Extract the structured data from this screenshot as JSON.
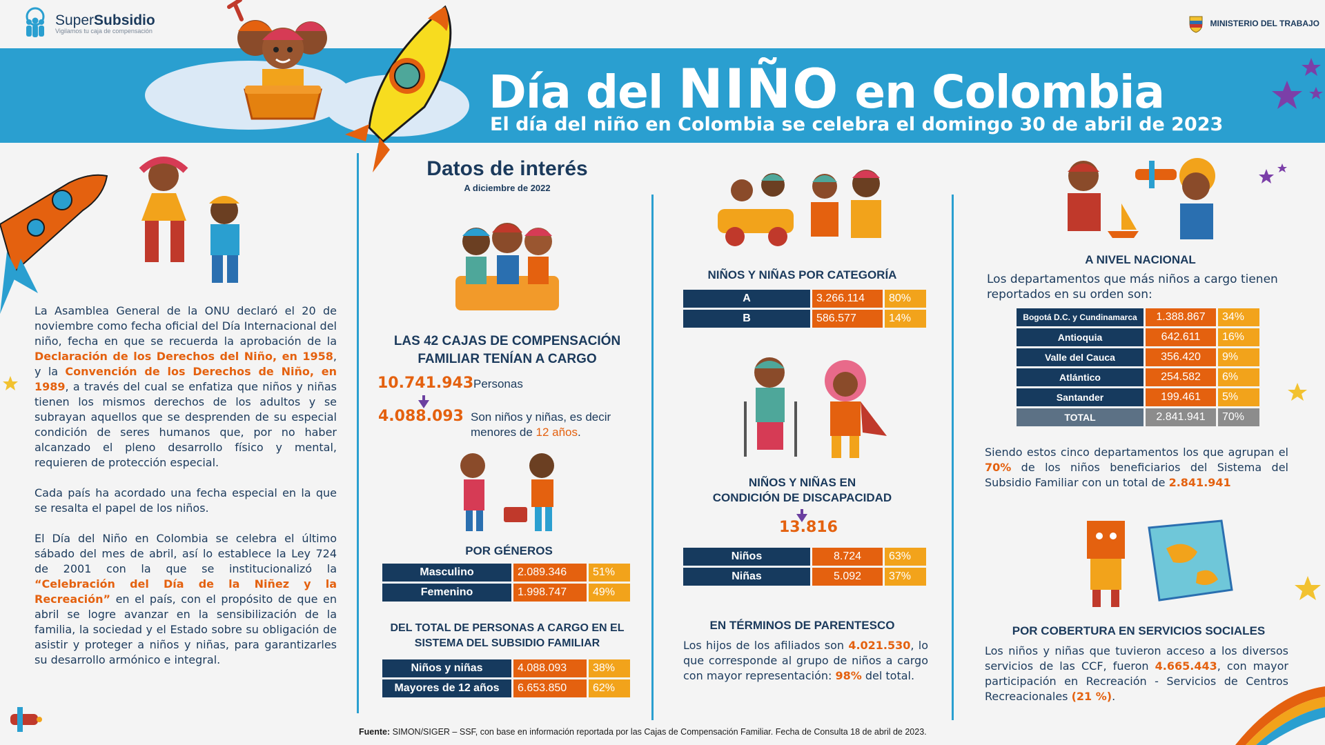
{
  "header": {
    "logo_name_a": "Super",
    "logo_name_b": "Subsidio",
    "logo_tagline": "Vigilamos tu caja de compensación",
    "ministry": "MINISTERIO DEL TRABAJO"
  },
  "banner": {
    "title_a": "Día del",
    "title_b": "NIÑO",
    "title_c": "en Colombia",
    "subtitle": "El día del niño en Colombia se celebra el domingo 30 de abril de 2023"
  },
  "col1": {
    "p1_a": "La Asamblea General de la ONU declaró el 20 de noviembre como fecha oficial del Día Internacional del niño, fecha en que se recuerda la aprobación de la ",
    "p1_hl1": "Declaración de los Derechos del Niño, en 1958",
    "p1_b": ", y la ",
    "p1_hl2": "Convención de los Derechos de Niño, en 1989",
    "p1_c": ", a través del cual se enfatiza que niños y niñas tienen los mismos derechos de los adultos y se subrayan aquellos que se desprenden de su especial condición de seres humanos que, por no haber alcanzado el pleno desarrollo físico y mental, requieren de protección especial.",
    "p2": "Cada país ha acordado una fecha especial en la que se resalta el papel de los niños.",
    "p3_a": "El Día del Niño en Colombia se celebra el último sábado del mes de abril, así lo establece la Ley 724 de 2001 con la que se institucionalizó la ",
    "p3_hl": "“Celebración del Día de la Niñez y la Recreación”",
    "p3_b": " en el país, con el propósito de que en abril se logre avanzar en la sensibilización de la familia, la sociedad y el Estado sobre su obligación de asistir y proteger a niños y niñas, para garantizarles su desarrollo armónico e integral."
  },
  "col2": {
    "title": "Datos de interés",
    "date": "A diciembre de 2022",
    "cajas_title_1": "LAS 42 CAJAS DE COMPENSACIÓN",
    "cajas_title_2": "FAMILIAR TENÍAN A CARGO",
    "personas_value": "10.741.943",
    "personas_label": "Personas",
    "ninos_value": "4.088.093",
    "ninos_label_1": "Son niños y niñas, es decir",
    "ninos_label_2": "menores de ",
    "ninos_label_hl": "12 años",
    "ninos_label_end": ".",
    "generos_title": "POR GÉNEROS",
    "generos": [
      {
        "label": "Masculino",
        "value": "2.089.346",
        "pct": "51%"
      },
      {
        "label": "Femenino",
        "value": "1.998.747",
        "pct": "49%"
      }
    ],
    "total_title_1": "DEL TOTAL DE PERSONAS A CARGO EN EL",
    "total_title_2": "SISTEMA DEL SUBSIDIO FAMILIAR",
    "total": [
      {
        "label": "Niños y niñas",
        "value": "4.088.093",
        "pct": "38%"
      },
      {
        "label": "Mayores de 12 años",
        "value": "6.653.850",
        "pct": "62%"
      }
    ]
  },
  "col3": {
    "categoria_title": "NIÑOS Y NIÑAS POR CATEGORÍA",
    "categoria": [
      {
        "label": "A",
        "value": "3.266.114",
        "pct": "80%"
      },
      {
        "label": "B",
        "value": "586.577",
        "pct": "14%"
      }
    ],
    "disc_title_1": "NIÑOS Y NIÑAS EN",
    "disc_title_2": "CONDICIÓN DE DISCAPACIDAD",
    "disc_value": "13.816",
    "disc": [
      {
        "label": "Niños",
        "value": "8.724",
        "pct": "63%"
      },
      {
        "label": "Niñas",
        "value": "5.092",
        "pct": "37%"
      }
    ],
    "parentesco_title": "EN TÉRMINOS DE PARENTESCO",
    "parentesco_a": "Los hijos de los afiliados son ",
    "parentesco_hl1": "4.021.530",
    "parentesco_b": ", lo que corresponde al grupo de niños a cargo con mayor representación: ",
    "parentesco_hl2": "98%",
    "parentesco_c": " del total."
  },
  "col4": {
    "nacional_title": "A NIVEL NACIONAL",
    "nacional_intro": "Los departamentos que más niños a cargo tienen reportados en su orden son:",
    "deptos": [
      {
        "label": "Bogotá D.C. y Cundinamarca",
        "value": "1.388.867",
        "pct": "34%"
      },
      {
        "label": "Antioquia",
        "value": "642.611",
        "pct": "16%"
      },
      {
        "label": "Valle del Cauca",
        "value": "356.420",
        "pct": "9%"
      },
      {
        "label": "Atlántico",
        "value": "254.582",
        "pct": "6%"
      },
      {
        "label": "Santander",
        "value": "199.461",
        "pct": "5%"
      }
    ],
    "total_row": {
      "label": "TOTAL",
      "value": "2.841.941",
      "pct": "70%"
    },
    "cinco_a": "Siendo estos cinco departamentos los que agrupan el ",
    "cinco_hl1": "70%",
    "cinco_b": " de los niños beneficiarios del Sistema del Subsidio Familiar con un total de ",
    "cinco_hl2": "2.841.941",
    "cobertura_title": "POR COBERTURA EN SERVICIOS SOCIALES",
    "cobertura_a": "Los niños y niñas que tuvieron acceso a los diversos servicios de las CCF, fueron ",
    "cobertura_hl1": "4.665.443",
    "cobertura_b": ", con mayor participación en Recreación - Servicios de Centros Recreacionales ",
    "cobertura_hl2": "(21 %)",
    "cobertura_c": "."
  },
  "footer": {
    "label": "Fuente:",
    "text": " SIMON/SIGER – SSF, con base en información reportada por las Cajas de Compensación Familiar. Fecha de Consulta 18 de abril de 2023."
  },
  "colors": {
    "navy": "#163a5e",
    "orange": "#e4610f",
    "amber": "#f2a31b",
    "blue": "#2a9fd0",
    "purple": "#6b3fa0"
  }
}
